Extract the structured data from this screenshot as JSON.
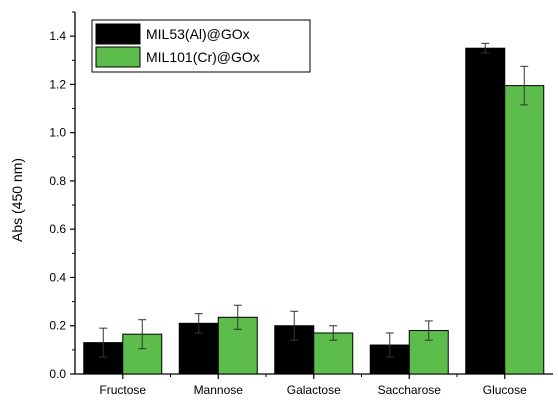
{
  "chart_data": {
    "type": "bar",
    "ylabel": "Abs (450 nm)",
    "xlabel": "",
    "ylim": [
      0,
      1.5
    ],
    "yticks": [
      "0.0",
      "0.2",
      "0.4",
      "0.6",
      "0.8",
      "1.0",
      "1.2",
      "1.4"
    ],
    "categories": [
      "Fructose",
      "Mannose",
      "Galactose",
      "Saccharose",
      "Glucose"
    ],
    "series": [
      {
        "name": "MIL53(Al)@GOx",
        "color": "#000000",
        "values": [
          0.13,
          0.21,
          0.2,
          0.12,
          1.35
        ],
        "errors": [
          0.06,
          0.04,
          0.06,
          0.05,
          0.02
        ]
      },
      {
        "name": "MIL101(Cr)@GOx",
        "color": "#5cbd4c",
        "values": [
          0.165,
          0.235,
          0.17,
          0.18,
          1.195
        ],
        "errors": [
          0.06,
          0.05,
          0.03,
          0.04,
          0.08
        ]
      }
    ],
    "legend_position": "top-left",
    "error_bars": true,
    "grid": false
  }
}
